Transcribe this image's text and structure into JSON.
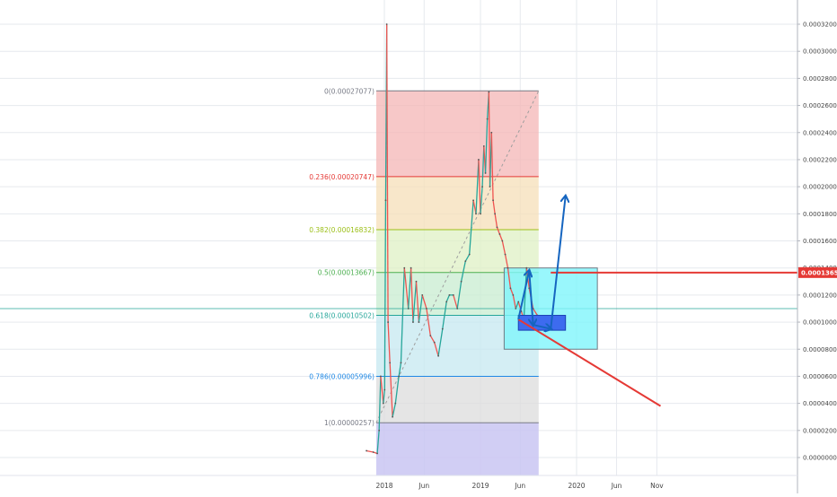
{
  "chart_data": {
    "type": "line",
    "title": "",
    "xlabel": "",
    "ylabel": "",
    "ylim": [
      -1e-06,
      3.3e-05
    ],
    "y_ticks": [
      "0.00032000",
      "0.00030000",
      "0.00028000",
      "0.00026000",
      "0.00024000",
      "0.00022000",
      "0.00020000",
      "0.00018000",
      "0.00016000",
      "0.00014000",
      "0.00012000",
      "0.00010000",
      "0.00008000",
      "0.00006000",
      "0.00004000",
      "0.00002000",
      "0.00000000"
    ],
    "y_tick_values": [
      3.2e-05,
      3e-05,
      2.8e-05,
      2.6e-05,
      2.4e-05,
      2.2e-05,
      2e-05,
      1.8e-05,
      1.6e-05,
      1.4e-05,
      1.2e-05,
      1e-05,
      8e-06,
      6e-06,
      4e-06,
      2e-06,
      0
    ],
    "x_ticks": [
      "2018",
      "Jun",
      "2019",
      "Jun",
      "2020",
      "Jun",
      "Nov"
    ],
    "x_tick_dates": [
      "2018-01-01",
      "2018-06-01",
      "2019-01-01",
      "2019-06-01",
      "2020-01-01",
      "2020-06-01",
      "2020-11-01"
    ],
    "current_price_label": "0.00013659",
    "current_price": 1.3659e-05,
    "fib_levels": [
      {
        "label": "0(0.00027077)",
        "ratio": 0,
        "price": 2.7077e-05,
        "color": "#787b86",
        "fill": "#f4b6b6"
      },
      {
        "label": "0.236(0.00020747)",
        "ratio": 0.236,
        "price": 2.0747e-05,
        "color": "#e53935",
        "fill": "#f6dfb8"
      },
      {
        "label": "0.382(0.00016832)",
        "ratio": 0.382,
        "price": 1.6832e-05,
        "color": "#9cbf17",
        "fill": "#dff0c4"
      },
      {
        "label": "0.5(0.00013667)",
        "ratio": 0.5,
        "price": 1.3667e-05,
        "color": "#4caf50",
        "fill": "#c8ecd0"
      },
      {
        "label": "0.618(0.00010502)",
        "ratio": 0.618,
        "price": 1.0502e-05,
        "color": "#26a69a",
        "fill": "#c6e8f0"
      },
      {
        "label": "0.786(0.00005996)",
        "ratio": 0.786,
        "price": 5.996e-06,
        "color": "#1e88e5",
        "fill": "#dcdcdc"
      },
      {
        "label": "1(0.00000257)",
        "ratio": 1,
        "price": 2.57e-06,
        "color": "#787b86",
        "fill": "#c9c6f2"
      }
    ],
    "fib_start_date": "2017-12-01",
    "fib_end_date": "2019-08-10",
    "price_series": {
      "name": "",
      "dates": [
        "2017-10-25",
        "2017-11-20",
        "2017-12-05",
        "2017-12-12",
        "2017-12-18",
        "2017-12-28",
        "2018-01-02",
        "2018-01-06",
        "2018-01-10",
        "2018-01-15",
        "2018-01-22",
        "2018-02-01",
        "2018-02-12",
        "2018-02-25",
        "2018-03-05",
        "2018-03-18",
        "2018-04-02",
        "2018-04-12",
        "2018-04-20",
        "2018-05-02",
        "2018-05-12",
        "2018-05-25",
        "2018-06-10",
        "2018-06-25",
        "2018-07-10",
        "2018-07-25",
        "2018-08-10",
        "2018-08-25",
        "2018-09-05",
        "2018-09-20",
        "2018-10-05",
        "2018-10-20",
        "2018-11-05",
        "2018-11-20",
        "2018-12-05",
        "2018-12-15",
        "2018-12-25",
        "2019-01-01",
        "2019-01-08",
        "2019-01-14",
        "2019-01-20",
        "2019-01-27",
        "2019-02-02",
        "2019-02-06",
        "2019-02-12",
        "2019-02-18",
        "2019-02-25",
        "2019-03-05",
        "2019-03-15",
        "2019-03-25",
        "2019-04-05",
        "2019-04-15",
        "2019-04-25",
        "2019-05-05",
        "2019-05-15",
        "2019-05-25",
        "2019-06-05",
        "2019-06-15",
        "2019-06-25",
        "2019-07-05",
        "2019-07-20",
        "2019-08-05"
      ],
      "values": [
        5e-07,
        4e-07,
        3e-07,
        2e-06,
        6e-06,
        4e-06,
        5e-06,
        1.9e-05,
        3.2e-05,
        1e-05,
        7e-06,
        3e-06,
        4e-06,
        6e-06,
        7e-06,
        1.4e-05,
        1.1e-05,
        1.4e-05,
        1e-05,
        1.3e-05,
        1e-05,
        1.2e-05,
        1.1e-05,
        9e-06,
        8.5e-06,
        7.5e-06,
        9.5e-06,
        1.15e-05,
        1.2e-05,
        1.2e-05,
        1.1e-05,
        1.3e-05,
        1.45e-05,
        1.5e-05,
        1.9e-05,
        1.8e-05,
        2.2e-05,
        1.8e-05,
        2e-05,
        2.3e-05,
        2.1e-05,
        2.5e-05,
        2.7e-05,
        2e-05,
        2.4e-05,
        1.9e-05,
        1.8e-05,
        1.7e-05,
        1.65e-05,
        1.6e-05,
        1.5e-05,
        1.4e-05,
        1.25e-05,
        1.2e-05,
        1.1e-05,
        1.15e-05,
        1.08e-05,
        1.02e-05,
        1.4e-05,
        1.25e-05,
        1.1e-05,
        1.05e-05
      ]
    },
    "projection_path": {
      "dates": [
        "2019-05-25",
        "2019-07-05",
        "2019-07-20",
        "2019-09-25",
        "2019-11-20"
      ],
      "values": [
        1.02e-05,
        1.38e-05,
        9.8e-06,
        9.5e-06,
        1.93e-05
      ]
    },
    "support_trendline": {
      "dates": [
        "2019-05-25",
        "2020-11-15"
      ],
      "values": [
        1.02e-05,
        3.8e-06
      ]
    },
    "resistance_line": {
      "from_date": "2019-09-25",
      "value": 1.3659e-05
    },
    "zone_box": {
      "from_date": "2019-04-01",
      "to_date": "2020-03-20",
      "top": 1.4e-05,
      "bottom": 8e-06
    },
    "entry_box": {
      "from_date": "2019-05-25",
      "to_date": "2019-11-20",
      "top": 1.05e-05,
      "bottom": 9.4e-06
    },
    "horizontal_line": {
      "value": 1.1e-05
    },
    "colors": {
      "bullish": "#26a69a",
      "bearish": "#ef5350",
      "resistance": "#e53935",
      "projection": "#1565c0",
      "zone_fill": "#7ff5fb",
      "entry_box": "#3d6bef",
      "grid": "#e6e9ee"
    }
  }
}
